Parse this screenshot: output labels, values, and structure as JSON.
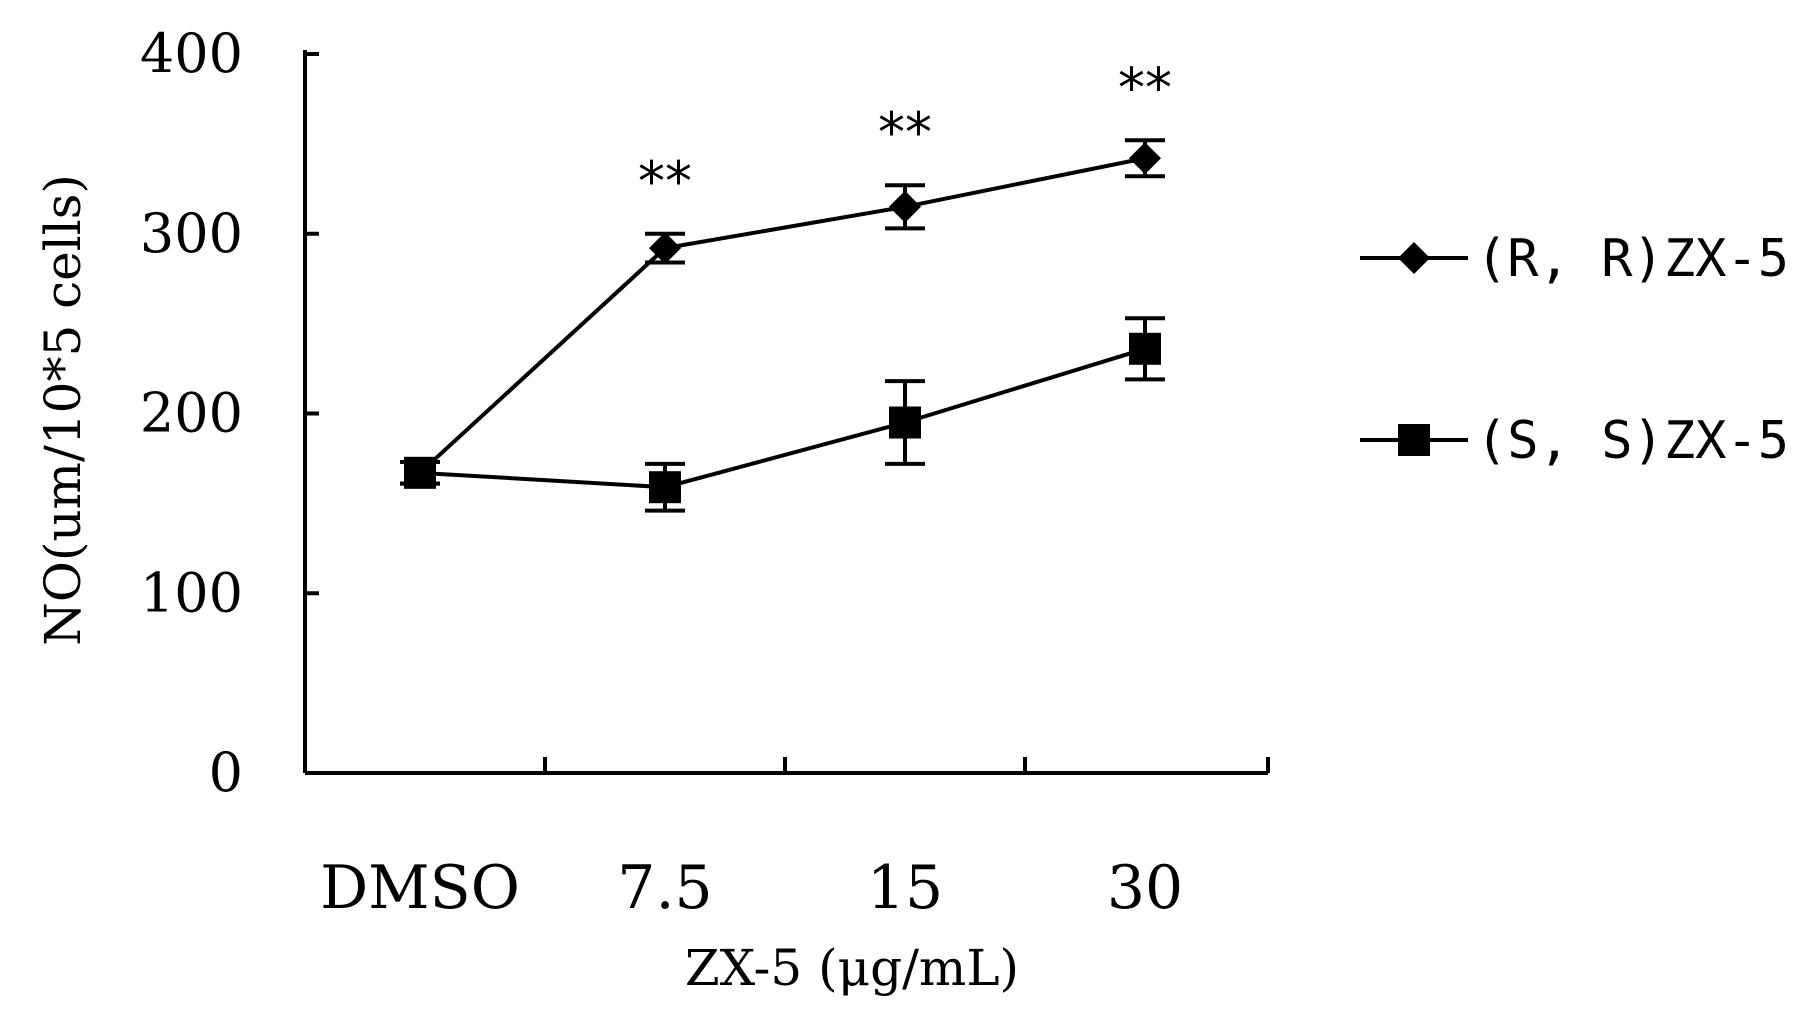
{
  "chart_data": {
    "type": "line",
    "title": "",
    "xlabel": "ZX-5 (μg/mL)",
    "ylabel": "NO(um/10*5 cells)",
    "categories": [
      "DMSO",
      "7.5",
      "15",
      "30"
    ],
    "ylim": [
      0,
      400
    ],
    "yticks": [
      0,
      100,
      200,
      300,
      400
    ],
    "grid": false,
    "legend_position": "right",
    "series": [
      {
        "name": "(R, R)ZX-5",
        "marker": "diamond",
        "values": [
          167,
          292,
          315,
          342
        ],
        "errors": [
          6,
          8,
          12,
          10
        ]
      },
      {
        "name": "(S, S)ZX-5",
        "marker": "square",
        "values": [
          167,
          159,
          195,
          236
        ],
        "errors": [
          6,
          13,
          23,
          17
        ]
      }
    ],
    "annotations": [
      {
        "category": "7.5",
        "text": "**"
      },
      {
        "category": "15",
        "text": "**"
      },
      {
        "category": "30",
        "text": "**"
      }
    ]
  }
}
